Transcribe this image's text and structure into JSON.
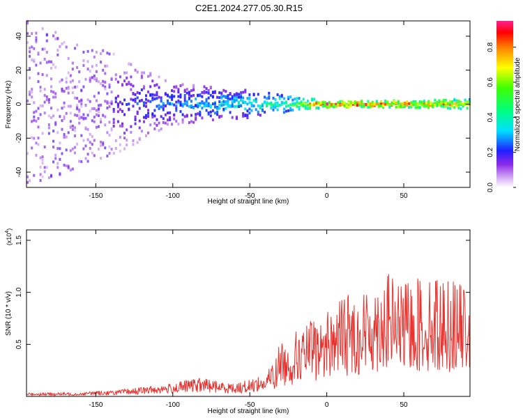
{
  "title": "C2E1.2024.277.05.30.R15",
  "chart_data": [
    {
      "type": "heatmap",
      "xlabel": "Height of straight line (km)",
      "ylabel": "Frequency (Hz)",
      "xlim": [
        -195,
        93
      ],
      "ylim": [
        -49,
        49
      ],
      "xticks": [
        -150,
        -100,
        -50,
        0,
        50
      ],
      "yticks": [
        -40,
        -20,
        0,
        20,
        40
      ],
      "colorbar": {
        "label": "Normalized spectral amplitude",
        "range": [
          0,
          0.95
        ],
        "ticks": [
          0.0,
          0.2,
          0.4,
          0.6,
          0.8
        ]
      },
      "ridge": {
        "frequency_hz": 0,
        "description_points": [
          {
            "x": -195,
            "half_width_hz": 49,
            "amplitude": 0.15
          },
          {
            "x": -140,
            "half_width_hz": 30,
            "amplitude": 0.2
          },
          {
            "x": -100,
            "half_width_hz": 12,
            "amplitude": 0.3
          },
          {
            "x": -50,
            "half_width_hz": 8,
            "amplitude": 0.45
          },
          {
            "x": -20,
            "half_width_hz": 4,
            "amplitude": 0.6
          },
          {
            "x": 0,
            "half_width_hz": 2,
            "amplitude": 0.95
          },
          {
            "x": 50,
            "half_width_hz": 2,
            "amplitude": 0.9
          },
          {
            "x": 93,
            "half_width_hz": 3,
            "amplitude": 0.75
          }
        ]
      }
    },
    {
      "type": "line",
      "xlabel": "Height of straight line (km)",
      "ylabel": "SNR (10 * v/v)",
      "y_multiplier": "(x10^4)",
      "xlim": [
        -195,
        93
      ],
      "ylim": [
        0,
        1.6
      ],
      "xticks": [
        -150,
        -100,
        -50,
        0,
        50
      ],
      "yticks": [
        0.5,
        1.0,
        1.5
      ],
      "ytick_labels": [
        "0.5",
        "1.0",
        "1.5"
      ],
      "series": [
        {
          "color": "#e8322e",
          "x": [
            -195,
            -180,
            -170,
            -160,
            -150,
            -140,
            -130,
            -120,
            -110,
            -100,
            -90,
            -80,
            -70,
            -60,
            -50,
            -45,
            -40,
            -35,
            -30,
            -25,
            -20,
            -15,
            -10,
            -5,
            0,
            5,
            10,
            15,
            20,
            25,
            30,
            35,
            40,
            45,
            50,
            55,
            60,
            65,
            70,
            75,
            80,
            85,
            90,
            93
          ],
          "y": [
            0.02,
            0.02,
            0.02,
            0.02,
            0.03,
            0.03,
            0.04,
            0.05,
            0.06,
            0.07,
            0.09,
            0.1,
            0.08,
            0.07,
            0.09,
            0.11,
            0.1,
            0.2,
            0.45,
            0.38,
            0.5,
            0.52,
            0.6,
            0.55,
            0.68,
            0.7,
            0.78,
            0.8,
            0.75,
            0.82,
            0.85,
            0.92,
            0.95,
            0.9,
            0.86,
            0.9,
            0.92,
            0.88,
            0.95,
            0.9,
            0.92,
            0.88,
            0.85,
            0.87
          ]
        }
      ]
    }
  ]
}
